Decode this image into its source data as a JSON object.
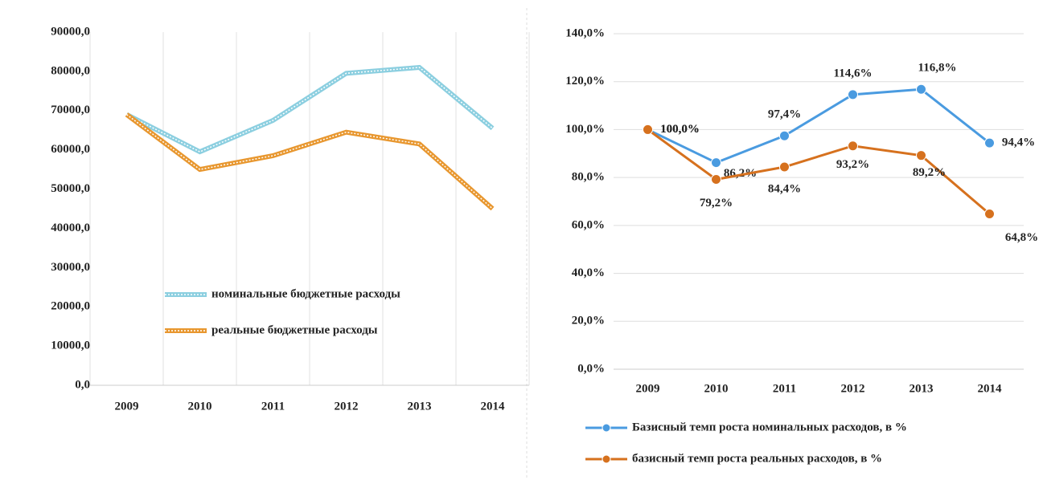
{
  "chart_data": [
    {
      "type": "line",
      "categories": [
        "2009",
        "2010",
        "2011",
        "2012",
        "2013",
        "2014"
      ],
      "series": [
        {
          "name": "номинальные бюджетные расходы",
          "color": "#8ccfe0",
          "values": [
            69000,
            59500,
            67500,
            79500,
            81000,
            65500
          ]
        },
        {
          "name": "реальные бюджетные расходы",
          "color": "#e8972f",
          "values": [
            69000,
            55000,
            58500,
            64500,
            61500,
            45000
          ]
        }
      ],
      "ylim": [
        0,
        90000
      ],
      "yticks": [
        {
          "value": 0,
          "label": "0,0"
        },
        {
          "value": 10000,
          "label": "10000,0"
        },
        {
          "value": 20000,
          "label": "20000,0"
        },
        {
          "value": 30000,
          "label": "30000,0"
        },
        {
          "value": 40000,
          "label": "40000,0"
        },
        {
          "value": 50000,
          "label": "50000,0"
        },
        {
          "value": 60000,
          "label": "60000,0"
        },
        {
          "value": 70000,
          "label": "70000,0"
        },
        {
          "value": 80000,
          "label": "80000,0"
        },
        {
          "value": 90000,
          "label": "90000,0"
        }
      ],
      "grid": "x",
      "legend": "inside"
    },
    {
      "type": "line",
      "categories": [
        "2009",
        "2010",
        "2011",
        "2012",
        "2013",
        "2014"
      ],
      "series": [
        {
          "name": "Базисный темп роста номинальных расходов, в %",
          "color": "#4a9be0",
          "values": [
            100,
            86.2,
            97.4,
            114.6,
            116.8,
            94.4
          ],
          "value_labels": [
            "100,0%",
            "86,2%",
            "97,4%",
            "114,6%",
            "116,8%",
            "94,4%"
          ]
        },
        {
          "name": "базисный темп роста реальных расходов, в %",
          "color": "#d6711e",
          "values": [
            100,
            79.2,
            84.4,
            93.2,
            89.2,
            64.8
          ],
          "value_labels": [
            "100,0%",
            "79,2%",
            "84,4%",
            "93,2%",
            "89,2%",
            "64,8%"
          ]
        }
      ],
      "ylim": [
        0,
        140
      ],
      "yticks": [
        {
          "value": 0,
          "label": "0,0%"
        },
        {
          "value": 20,
          "label": "20,0%"
        },
        {
          "value": 40,
          "label": "40,0%"
        },
        {
          "value": 60,
          "label": "60,0%"
        },
        {
          "value": 80,
          "label": "80,0%"
        },
        {
          "value": 100,
          "label": "100,0%"
        },
        {
          "value": 120,
          "label": "120,0%"
        },
        {
          "value": 140,
          "label": "140,0%"
        }
      ],
      "grid": "y",
      "marker": "circle",
      "legend": "bottom"
    }
  ]
}
